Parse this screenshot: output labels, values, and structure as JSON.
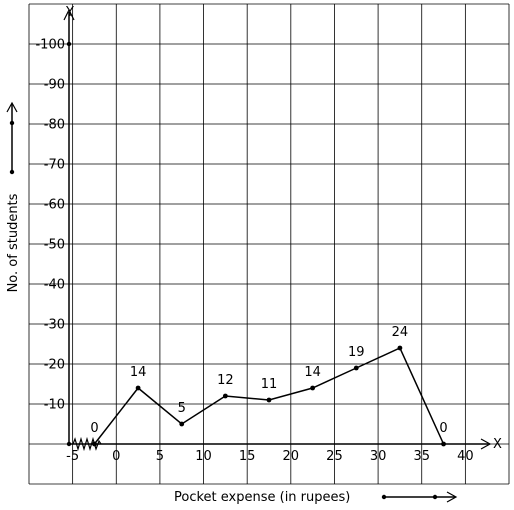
{
  "chart_data": {
    "type": "line",
    "title": "",
    "xlabel": "Pocket expense (in rupees)",
    "ylabel": "No. of students",
    "x_axis_letter": "X",
    "y_axis_letter": "Y",
    "x_ticks": [
      -5,
      0,
      5,
      10,
      15,
      20,
      25,
      30,
      35,
      40
    ],
    "y_ticks": [
      10,
      20,
      30,
      40,
      50,
      60,
      70,
      80,
      90,
      100
    ],
    "xlim": [
      -10,
      45
    ],
    "ylim": [
      -10,
      110
    ],
    "grid": true,
    "series": [
      {
        "x": [
          -2.5,
          2.5,
          7.5,
          12.5,
          17.5,
          22.5,
          27.5,
          32.5,
          37.5
        ],
        "y": [
          0,
          14,
          5,
          12,
          11,
          14,
          19,
          24,
          0
        ]
      }
    ],
    "data_labels": [
      "0",
      "14",
      "5",
      "12",
      "11",
      "14",
      "19",
      "24",
      "0"
    ],
    "axis_break": "x",
    "colors": {
      "line": "#000000",
      "grid": "#000000",
      "background": "#ffffff"
    }
  }
}
